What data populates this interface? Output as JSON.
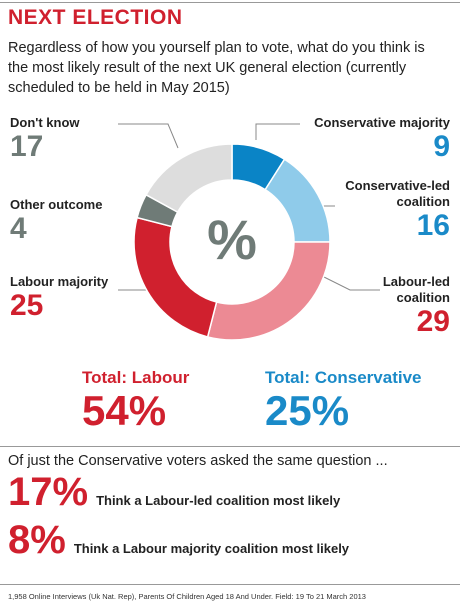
{
  "chart_data": {
    "type": "donut",
    "title": "NEXT ELECTION",
    "subtitle": "Regardless of how you yourself plan to vote, what do you think is the most likely result of the next UK general election (currently scheduled to be held in May 2015)",
    "center_label": "%",
    "categories": [
      "Conservative majority",
      "Conservative-led coalition",
      "Labour-led coalition",
      "Labour majority",
      "Other outcome",
      "Don't know"
    ],
    "values": [
      9,
      16,
      29,
      25,
      4,
      17
    ],
    "colors": [
      "#0a84c6",
      "#8fcbea",
      "#ec8a94",
      "#d0202e",
      "#6f7b77",
      "#dddddd"
    ],
    "totals": [
      {
        "label": "Total: Labour",
        "value_label": "54%",
        "color": "#d0202e"
      },
      {
        "label": "Total: Conservative",
        "value_label": "25%",
        "color": "#1a8ac8"
      }
    ],
    "followup": {
      "heading": "Of just the Conservative voters asked the same question ...",
      "items": [
        {
          "value_label": "17%",
          "text": "Think a Labour-led coalition most likely"
        },
        {
          "value_label": "8%",
          "text": "Think a Labour majority coalition most likely"
        }
      ]
    },
    "source": "1,958 Online Interviews (Uk Nat. Rep), Parents Of Children Aged 18 And Under. Field: 19 To 21 March 2013"
  }
}
